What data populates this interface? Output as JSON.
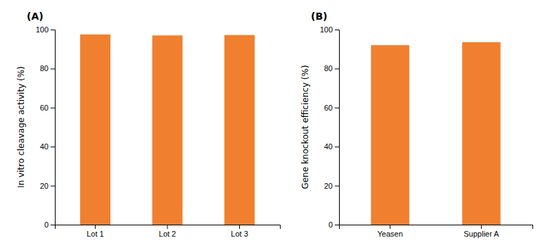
{
  "chart_data": [
    {
      "type": "bar",
      "title": "(A)",
      "categories": [
        "Lot 1",
        "Lot 2",
        "Lot 3"
      ],
      "values": [
        97.5,
        97.0,
        97.2
      ],
      "ylabel": "In vitro cleavage activity (%)",
      "color": "#F08030",
      "ylim": [
        0,
        100
      ],
      "yticks": [
        0,
        20,
        40,
        60,
        80,
        100
      ]
    },
    {
      "type": "bar",
      "title": "(B)",
      "categories": [
        "Yeasen",
        "Supplier A"
      ],
      "values": [
        92.0,
        93.5
      ],
      "ylabel": "Gene knockout efficiency (%)",
      "color": "#F08030",
      "ylim": [
        0,
        100
      ],
      "yticks": [
        0,
        20,
        40,
        60,
        80,
        100
      ]
    }
  ]
}
